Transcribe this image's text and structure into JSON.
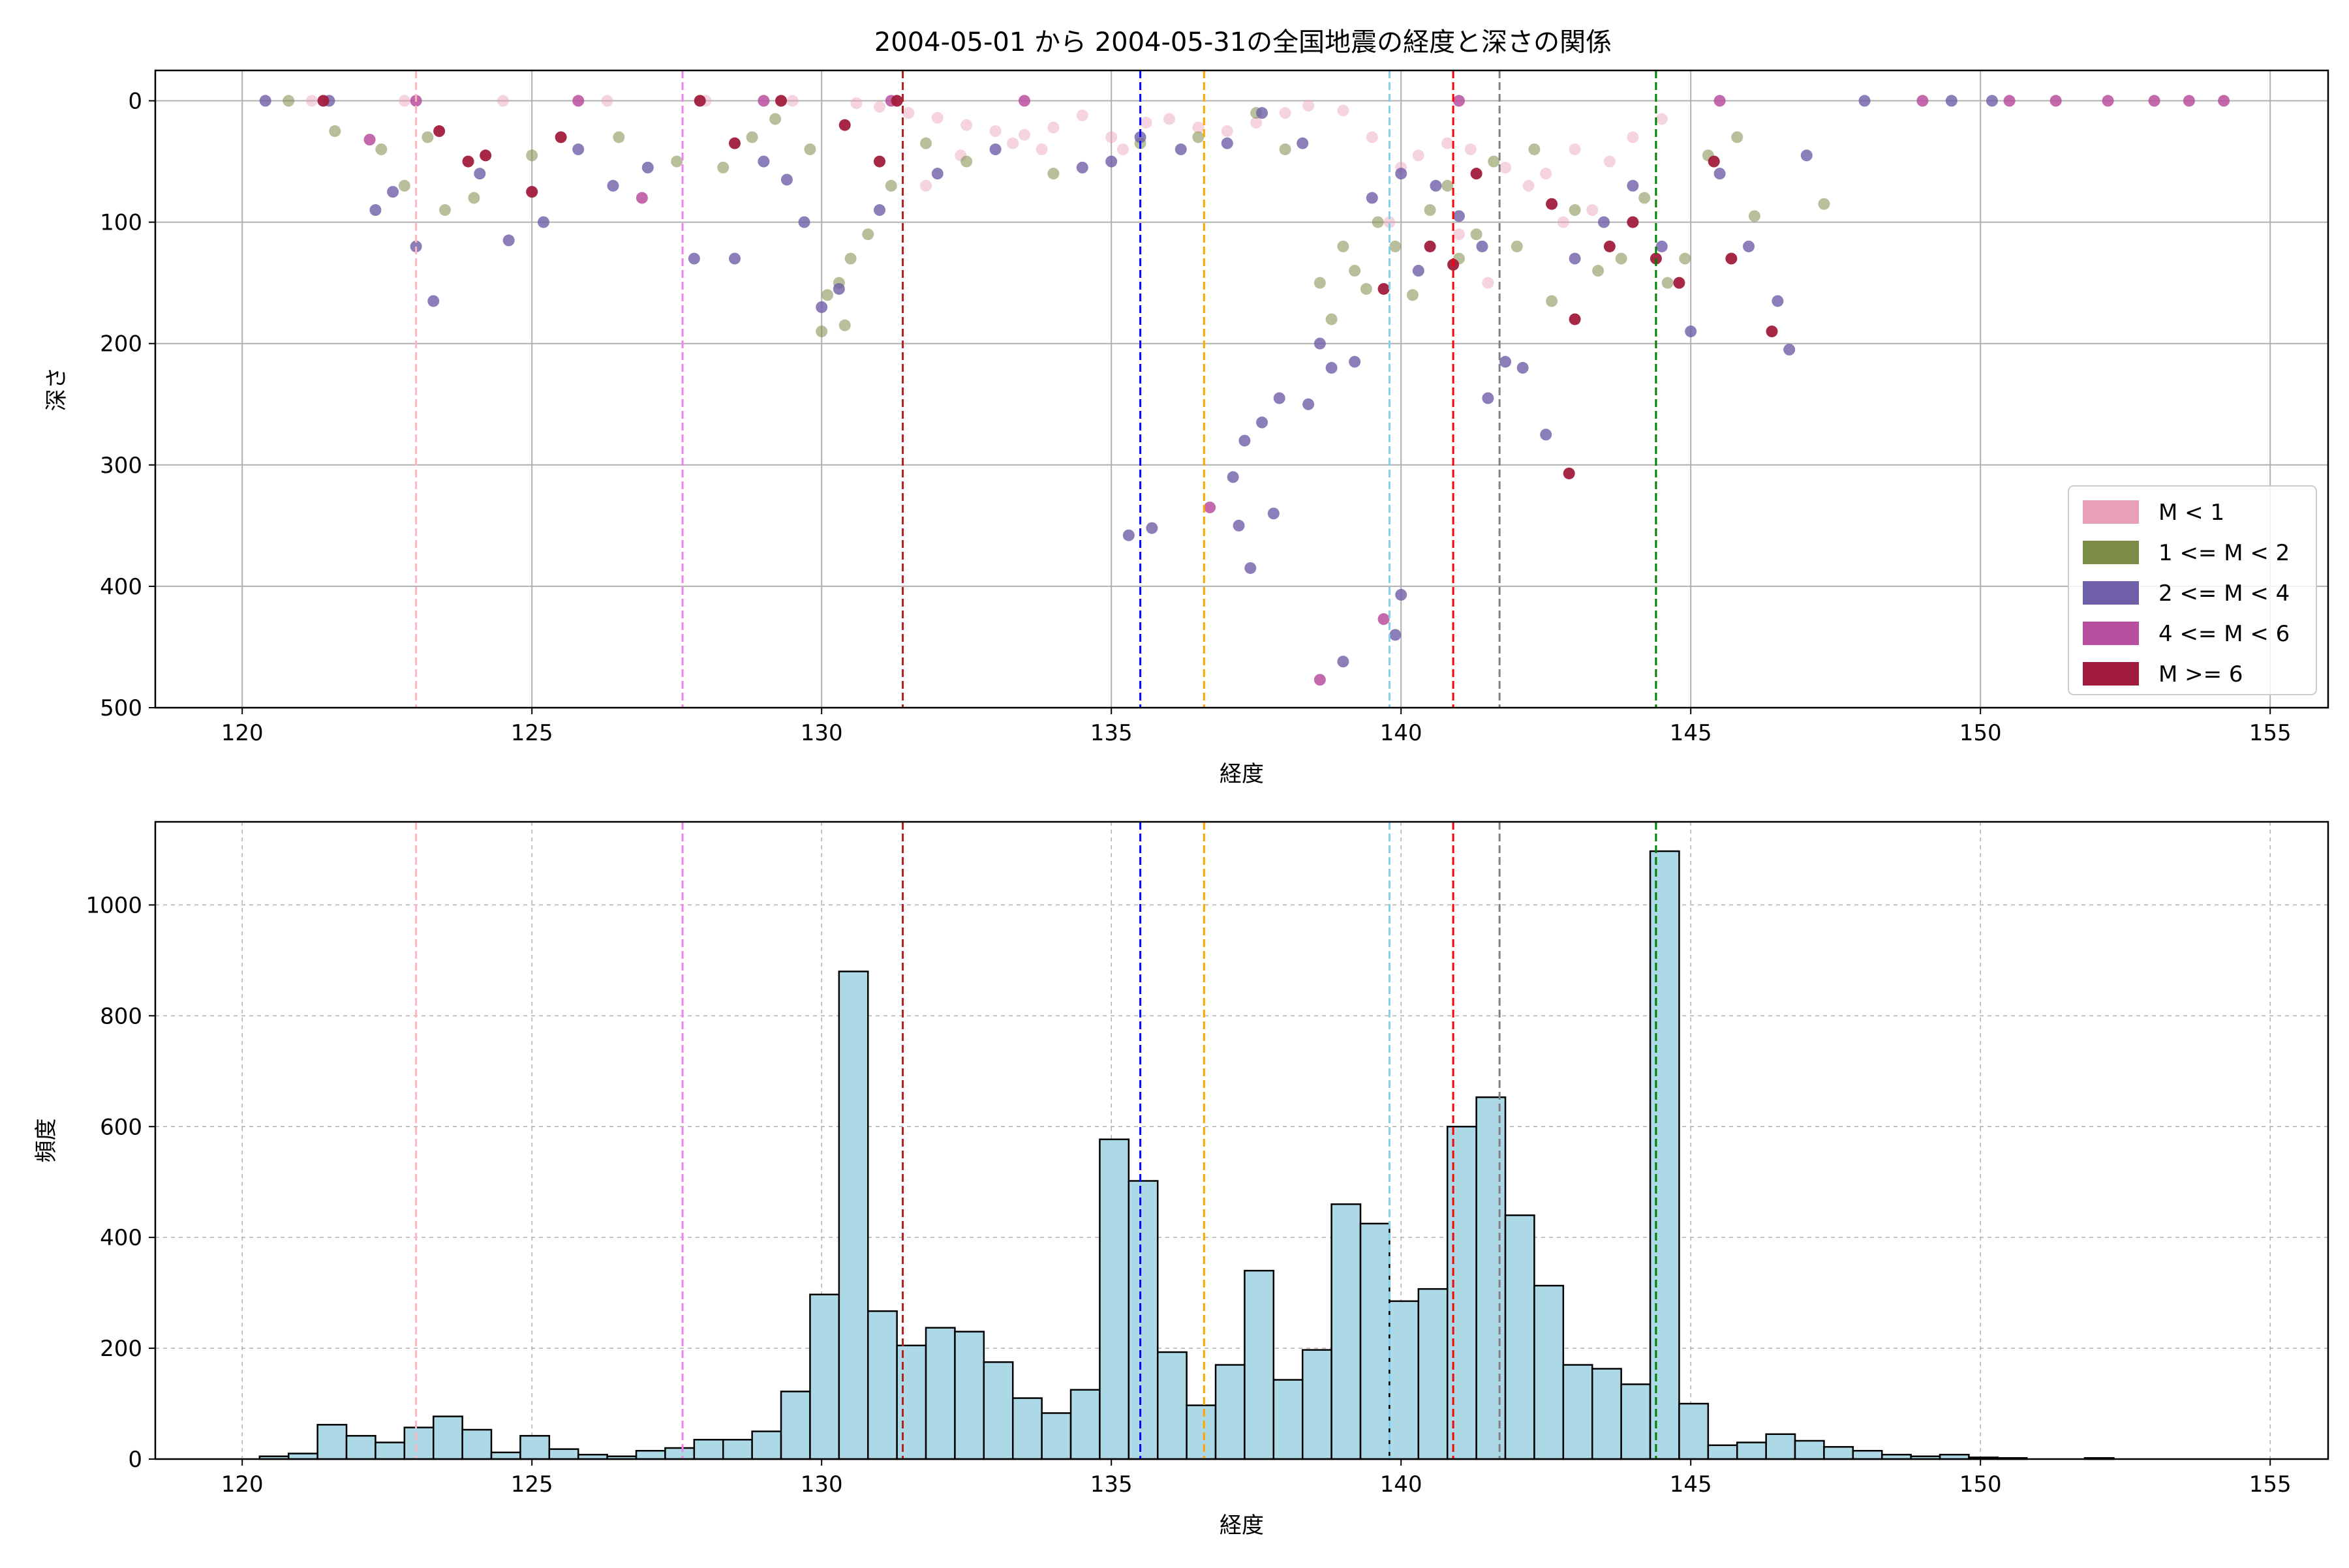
{
  "title": "2004-05-01 から 2004-05-31の全国地震の経度と深さの関係",
  "chart_data": [
    {
      "type": "scatter",
      "xlabel": "経度",
      "ylabel": "深さ",
      "xlim": [
        118.5,
        156
      ],
      "ylim": [
        500,
        -25
      ],
      "y_inverted": true,
      "xticks": [
        120,
        125,
        130,
        135,
        140,
        145,
        150,
        155
      ],
      "yticks": [
        0,
        100,
        200,
        300,
        400,
        500
      ],
      "grid": true,
      "legend_position": "lower-right",
      "series": [
        {
          "name": "M < 1",
          "color": "#e8a0b8",
          "alpha": 0.45,
          "points": [
            [
              121.2,
              0
            ],
            [
              122.8,
              0
            ],
            [
              124.5,
              0
            ],
            [
              126.3,
              0
            ],
            [
              128.0,
              0
            ],
            [
              129.5,
              0
            ],
            [
              130.6,
              2
            ],
            [
              131.0,
              5
            ],
            [
              131.5,
              10
            ],
            [
              132.0,
              14
            ],
            [
              132.5,
              20
            ],
            [
              133.0,
              25
            ],
            [
              133.3,
              35
            ],
            [
              133.5,
              28
            ],
            [
              134.0,
              22
            ],
            [
              134.5,
              12
            ],
            [
              135.0,
              30
            ],
            [
              135.2,
              40
            ],
            [
              135.6,
              18
            ],
            [
              136.0,
              15
            ],
            [
              136.5,
              22
            ],
            [
              137.0,
              25
            ],
            [
              137.5,
              18
            ],
            [
              138.0,
              10
            ],
            [
              138.4,
              4
            ],
            [
              139.0,
              8
            ],
            [
              139.5,
              30
            ],
            [
              140.0,
              55
            ],
            [
              140.3,
              45
            ],
            [
              140.8,
              35
            ],
            [
              141.2,
              40
            ],
            [
              141.8,
              55
            ],
            [
              142.2,
              70
            ],
            [
              142.5,
              60
            ],
            [
              143.0,
              40
            ],
            [
              143.6,
              50
            ],
            [
              144.0,
              30
            ],
            [
              144.5,
              15
            ],
            [
              141.0,
              110
            ],
            [
              131.8,
              70
            ],
            [
              132.4,
              45
            ],
            [
              133.8,
              40
            ],
            [
              139.8,
              100
            ],
            [
              141.5,
              150
            ],
            [
              142.8,
              100
            ],
            [
              143.3,
              90
            ]
          ]
        },
        {
          "name": "1 <= M < 2",
          "color": "#7b8c47",
          "alpha": 0.55,
          "points": [
            [
              120.8,
              0
            ],
            [
              121.6,
              25
            ],
            [
              122.4,
              40
            ],
            [
              122.8,
              70
            ],
            [
              123.2,
              30
            ],
            [
              123.5,
              90
            ],
            [
              124.0,
              80
            ],
            [
              125.0,
              45
            ],
            [
              126.5,
              30
            ],
            [
              127.5,
              50
            ],
            [
              128.3,
              55
            ],
            [
              128.8,
              30
            ],
            [
              129.2,
              15
            ],
            [
              129.8,
              40
            ],
            [
              130.1,
              160
            ],
            [
              130.3,
              150
            ],
            [
              130.4,
              185
            ],
            [
              130.5,
              130
            ],
            [
              130.8,
              110
            ],
            [
              131.2,
              70
            ],
            [
              131.8,
              35
            ],
            [
              132.5,
              50
            ],
            [
              134.0,
              60
            ],
            [
              135.5,
              35
            ],
            [
              136.5,
              30
            ],
            [
              137.5,
              10
            ],
            [
              138.0,
              40
            ],
            [
              138.6,
              150
            ],
            [
              138.8,
              180
            ],
            [
              139.0,
              120
            ],
            [
              139.2,
              140
            ],
            [
              139.4,
              155
            ],
            [
              139.6,
              100
            ],
            [
              139.9,
              120
            ],
            [
              140.2,
              160
            ],
            [
              140.5,
              90
            ],
            [
              140.8,
              70
            ],
            [
              141.0,
              130
            ],
            [
              141.3,
              110
            ],
            [
              141.6,
              50
            ],
            [
              142.0,
              120
            ],
            [
              142.3,
              40
            ],
            [
              142.6,
              165
            ],
            [
              143.0,
              90
            ],
            [
              143.4,
              140
            ],
            [
              143.8,
              130
            ],
            [
              144.2,
              80
            ],
            [
              144.6,
              150
            ],
            [
              144.9,
              130
            ],
            [
              145.3,
              45
            ],
            [
              145.8,
              30
            ],
            [
              146.1,
              95
            ],
            [
              147.3,
              85
            ],
            [
              130.0,
              190
            ]
          ]
        },
        {
          "name": "2 <= M < 4",
          "color": "#6f5ea8",
          "alpha": 0.8,
          "points": [
            [
              120.4,
              0
            ],
            [
              121.5,
              0
            ],
            [
              122.3,
              90
            ],
            [
              122.6,
              75
            ],
            [
              123.0,
              120
            ],
            [
              123.3,
              165
            ],
            [
              124.1,
              60
            ],
            [
              124.6,
              115
            ],
            [
              125.2,
              100
            ],
            [
              125.8,
              40
            ],
            [
              126.4,
              70
            ],
            [
              127.0,
              55
            ],
            [
              127.8,
              130
            ],
            [
              128.5,
              130
            ],
            [
              129.0,
              50
            ],
            [
              129.4,
              65
            ],
            [
              129.7,
              100
            ],
            [
              130.0,
              170
            ],
            [
              130.3,
              155
            ],
            [
              131.0,
              90
            ],
            [
              132.0,
              60
            ],
            [
              133.0,
              40
            ],
            [
              134.5,
              55
            ],
            [
              135.0,
              50
            ],
            [
              135.5,
              30
            ],
            [
              136.2,
              40
            ],
            [
              137.0,
              35
            ],
            [
              137.6,
              10
            ],
            [
              138.3,
              35
            ],
            [
              138.4,
              250
            ],
            [
              138.6,
              200
            ],
            [
              138.8,
              220
            ],
            [
              139.2,
              215
            ],
            [
              137.8,
              340
            ],
            [
              137.4,
              385
            ],
            [
              137.2,
              350
            ],
            [
              137.1,
              310
            ],
            [
              137.3,
              280
            ],
            [
              137.6,
              265
            ],
            [
              137.9,
              245
            ],
            [
              135.3,
              358
            ],
            [
              135.7,
              352
            ],
            [
              139.0,
              462
            ],
            [
              139.9,
              440
            ],
            [
              140.0,
              407
            ],
            [
              139.5,
              80
            ],
            [
              140.0,
              60
            ],
            [
              140.3,
              140
            ],
            [
              140.6,
              70
            ],
            [
              141.0,
              95
            ],
            [
              141.4,
              120
            ],
            [
              141.8,
              215
            ],
            [
              142.1,
              220
            ],
            [
              141.5,
              245
            ],
            [
              142.5,
              275
            ],
            [
              143.0,
              130
            ],
            [
              143.5,
              100
            ],
            [
              144.0,
              70
            ],
            [
              144.5,
              120
            ],
            [
              145.0,
              190
            ],
            [
              145.5,
              60
            ],
            [
              146.0,
              120
            ],
            [
              146.5,
              165
            ],
            [
              146.7,
              205
            ],
            [
              147.0,
              45
            ],
            [
              148.0,
              0
            ],
            [
              149.5,
              0
            ],
            [
              150.2,
              0
            ]
          ]
        },
        {
          "name": "4 <= M < 6",
          "color": "#b84f9e",
          "alpha": 0.85,
          "points": [
            [
              122.2,
              32
            ],
            [
              123.0,
              0
            ],
            [
              125.8,
              0
            ],
            [
              126.9,
              80
            ],
            [
              129.0,
              0
            ],
            [
              131.2,
              0
            ],
            [
              133.5,
              0
            ],
            [
              136.7,
              335
            ],
            [
              139.7,
              427
            ],
            [
              138.6,
              477
            ],
            [
              141.0,
              0
            ],
            [
              145.5,
              0
            ],
            [
              149.0,
              0
            ],
            [
              150.5,
              0
            ],
            [
              151.3,
              0
            ],
            [
              152.2,
              0
            ],
            [
              153.0,
              0
            ],
            [
              153.6,
              0
            ],
            [
              154.2,
              0
            ]
          ]
        },
        {
          "name": "M >= 6",
          "color": "#a11c3c",
          "alpha": 0.95,
          "points": [
            [
              121.4,
              0
            ],
            [
              123.4,
              25
            ],
            [
              123.9,
              50
            ],
            [
              124.2,
              45
            ],
            [
              125.0,
              75
            ],
            [
              125.5,
              30
            ],
            [
              127.9,
              0
            ],
            [
              128.5,
              35
            ],
            [
              129.3,
              0
            ],
            [
              130.4,
              20
            ],
            [
              131.0,
              50
            ],
            [
              131.3,
              0
            ],
            [
              139.7,
              155
            ],
            [
              140.5,
              120
            ],
            [
              140.9,
              135
            ],
            [
              141.3,
              60
            ],
            [
              142.6,
              85
            ],
            [
              143.0,
              180
            ],
            [
              142.9,
              307
            ],
            [
              143.6,
              120
            ],
            [
              144.0,
              100
            ],
            [
              144.4,
              130
            ],
            [
              144.8,
              150
            ],
            [
              145.4,
              50
            ],
            [
              145.7,
              130
            ],
            [
              146.4,
              190
            ]
          ]
        }
      ],
      "vlines": [
        {
          "x": 123.0,
          "color": "#ffb6c1"
        },
        {
          "x": 127.6,
          "color": "#ee82ee"
        },
        {
          "x": 131.4,
          "color": "#b22222"
        },
        {
          "x": 135.5,
          "color": "#0000ff"
        },
        {
          "x": 136.6,
          "color": "#ffa500"
        },
        {
          "x": 139.8,
          "color": "#87ceeb"
        },
        {
          "x": 140.9,
          "color": "#ff0000"
        },
        {
          "x": 141.7,
          "color": "#808080"
        },
        {
          "x": 144.4,
          "color": "#008000"
        }
      ]
    },
    {
      "type": "bar",
      "xlabel": "経度",
      "ylabel": "頻度",
      "xlim": [
        118.5,
        156
      ],
      "ylim": [
        0,
        1150
      ],
      "xticks": [
        120,
        125,
        130,
        135,
        140,
        145,
        150,
        155
      ],
      "yticks": [
        0,
        200,
        400,
        600,
        800,
        1000
      ],
      "grid": true,
      "grid_style": "dashed",
      "bar_color": "#add8e6",
      "bar_edge_color": "#000000",
      "bin_start": 120.3,
      "bin_width": 0.5,
      "values": [
        5,
        10,
        62,
        42,
        30,
        57,
        77,
        53,
        12,
        42,
        18,
        8,
        5,
        15,
        20,
        35,
        35,
        50,
        122,
        297,
        880,
        267,
        205,
        237,
        230,
        175,
        110,
        83,
        125,
        577,
        502,
        193,
        97,
        170,
        340,
        143,
        197,
        460,
        425,
        285,
        307,
        600,
        653,
        440,
        313,
        170,
        163,
        135,
        1097,
        100,
        25,
        30,
        45,
        33,
        22,
        15,
        8,
        5,
        8,
        3,
        2,
        0,
        0,
        2,
        0,
        0,
        0,
        0,
        0
      ],
      "vlines": [
        {
          "x": 123.0,
          "color": "#ffb6c1"
        },
        {
          "x": 127.6,
          "color": "#ee82ee"
        },
        {
          "x": 131.4,
          "color": "#b22222"
        },
        {
          "x": 135.5,
          "color": "#0000ff"
        },
        {
          "x": 136.6,
          "color": "#ffa500"
        },
        {
          "x": 139.8,
          "color": "#87ceeb"
        },
        {
          "x": 140.9,
          "color": "#ff0000"
        },
        {
          "x": 141.7,
          "color": "#808080"
        },
        {
          "x": 144.4,
          "color": "#008000"
        }
      ]
    }
  ]
}
